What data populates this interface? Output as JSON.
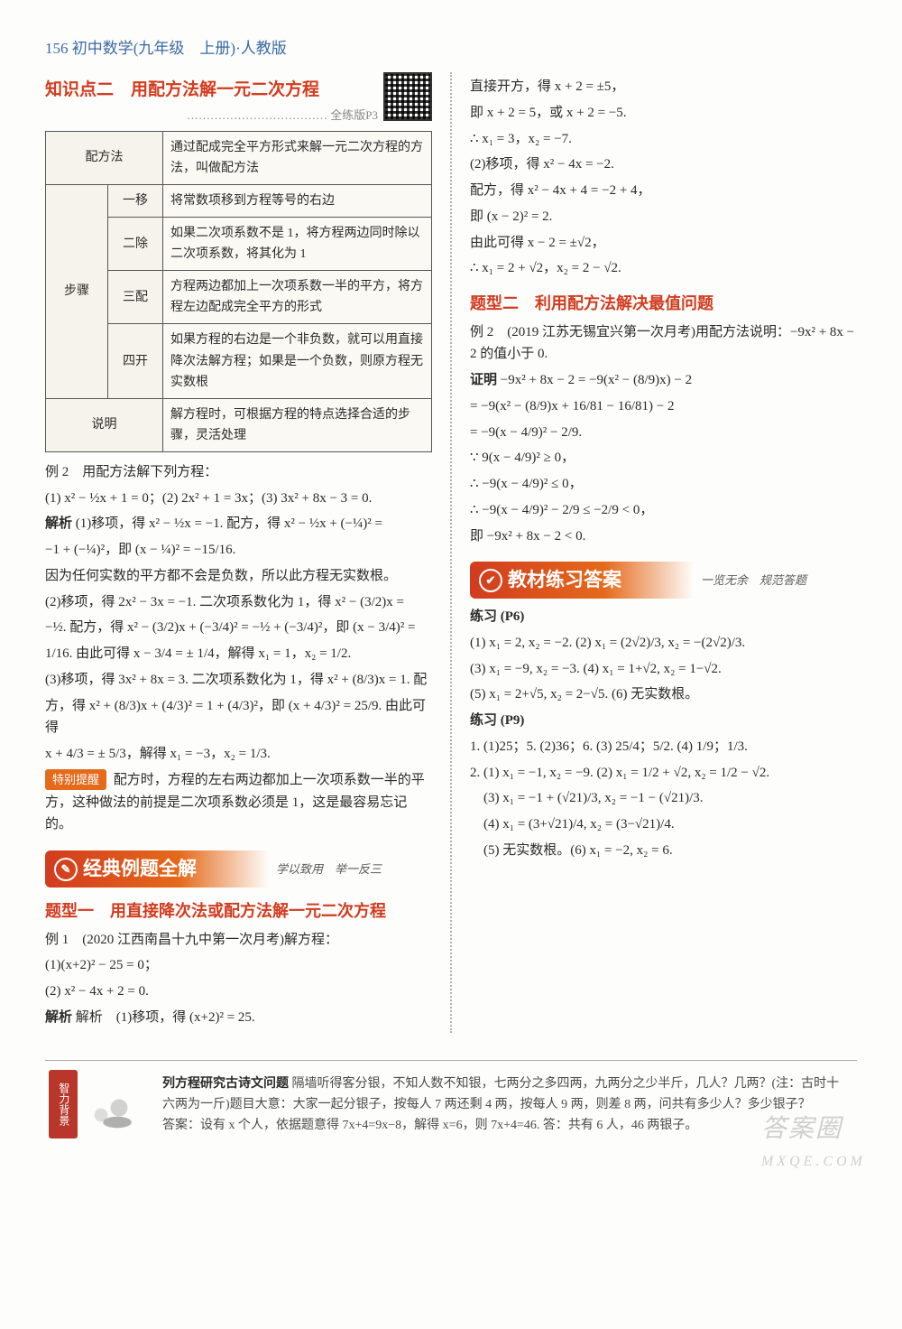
{
  "header": "156 初中数学(九年级　上册)·人教版",
  "left": {
    "kp_title": "知识点二　用配方法解一元二次方程",
    "dotline": "……………………………… 全练版P3",
    "table": {
      "r1l": "配方法",
      "r1": "通过配成完全平方形式来解一元二次方程的方法，叫做配方法",
      "steps_label": "步骤",
      "s1l": "一移",
      "s1": "将常数项移到方程等号的右边",
      "s2l": "二除",
      "s2": "如果二次项系数不是 1，将方程两边同时除以二次项系数，将其化为 1",
      "s3l": "三配",
      "s3": "方程两边都加上一次项系数一半的平方，将方程左边配成完全平方的形式",
      "s4l": "四开",
      "s4": "如果方程的右边是一个非负数，就可以用直接降次法解方程；如果是一个负数，则原方程无实数根",
      "r3l": "说明",
      "r3": "解方程时，可根据方程的特点选择合适的步骤，灵活处理"
    },
    "ex2_title": "例 2　用配方法解下列方程：",
    "ex2_q": "(1) x² − ½x + 1 = 0；(2) 2x² + 1 = 3x；(3) 3x² + 8x − 3 = 0.",
    "jiexi": "解析",
    "p1": "(1)移项，得 x² − ½x = −1. 配方，得 x² − ½x + (−¼)² =",
    "p2": "−1 + (−¼)²，即 (x − ¼)² = −15/16.",
    "p3": "因为任何实数的平方都不会是负数，所以此方程无实数根。",
    "p4": "(2)移项，得 2x² − 3x = −1. 二次项系数化为 1，得 x² − (3/2)x =",
    "p5": "−½. 配方，得 x² − (3/2)x + (−3/4)² = −½ + (−3/4)²，即 (x − 3/4)² =",
    "p6": "1/16. 由此可得 x − 3/4 = ± 1/4，解得 x₁ = 1，x₂ = 1/2.",
    "p7": "(3)移项，得 3x² + 8x = 3. 二次项系数化为 1，得 x² + (8/3)x = 1. 配",
    "p8": "方，得 x² + (8/3)x + (4/3)² = 1 + (4/3)²，即 (x + 4/3)² = 25/9. 由此可得",
    "p9": "x + 4/3 = ± 5/3，解得 x₁ = −3，x₂ = 1/3.",
    "tip_label": "特别提醒",
    "tip": "配方时，方程的左右两边都加上一次项系数一半的平方，这种做法的前提是二次项系数必须是 1，这是最容易忘记的。",
    "banner1": "经典例题全解",
    "banner1_sub": "学以致用　举一反三",
    "type1": "题型一　用直接降次法或配方法解一元二次方程",
    "ex1l": "例 1　(2020 江西南昌十九中第一次月考)解方程：",
    "ex1a": "(1)(x+2)² − 25 = 0；",
    "ex1b": "(2) x² − 4x + 2 = 0.",
    "ex1s": "解析　(1)移项，得 (x+2)² = 25."
  },
  "right": {
    "r1": "直接开方，得 x + 2 = ±5，",
    "r2": "即 x + 2 = 5，或 x + 2 = −5.",
    "r3": "∴ x₁ = 3，x₂ = −7.",
    "r4": "(2)移项，得 x² − 4x = −2.",
    "r5": "配方，得 x² − 4x + 4 = −2 + 4，",
    "r6": "即 (x − 2)² = 2.",
    "r7": "由此可得 x − 2 = ±√2，",
    "r8": "∴ x₁ = 2 + √2，x₂ = 2 − √2.",
    "type2": "题型二　利用配方法解决最值问题",
    "ex2l": "例 2　(2019 江苏无锡宜兴第一次月考)用配方法说明：−9x² + 8x − 2 的值小于 0.",
    "proof": "证明",
    "pr1": "−9x² + 8x − 2 = −9(x² − (8/9)x) − 2",
    "pr2": "= −9(x² − (8/9)x + 16/81 − 16/81) − 2",
    "pr3": "= −9(x − 4/9)² − 2/9.",
    "pr4": "∵ 9(x − 4/9)² ≥ 0，",
    "pr5": "∴ −9(x − 4/9)² ≤ 0，",
    "pr6": "∴ −9(x − 4/9)² − 2/9 ≤ −2/9 < 0，",
    "pr7": "即 −9x² + 8x − 2 < 0.",
    "banner2": "教材练习答案",
    "banner2_sub": "一览无余　规范答题",
    "lx6": "练习 (P6)",
    "a1": "(1) x₁ = 2, x₂ = −2. (2) x₁ = (2√2)/3, x₂ = −(2√2)/3.",
    "a2": "(3) x₁ = −9, x₂ = −3. (4) x₁ = 1+√2, x₂ = 1−√2.",
    "a3": "(5) x₁ = 2+√5, x₂ = 2−√5. (6) 无实数根。",
    "lx9": "练习 (P9)",
    "b1": "1. (1)25；5. (2)36；6. (3) 25/4；5/2. (4) 1/9；1/3.",
    "b2": "2. (1) x₁ = −1, x₂ = −9. (2) x₁ = 1/2 + √2, x₂ = 1/2 − √2.",
    "b3": "　(3) x₁ = −1 + (√21)/3, x₂ = −1 − (√21)/3.",
    "b4": "　(4) x₁ = (3+√21)/4, x₂ = (3−√21)/4.",
    "b5": "　(5) 无实数根。(6) x₁ = −2, x₂ = 6."
  },
  "foot": {
    "seal": "智力背景",
    "title": "列方程研究古诗文问题",
    "body": "隔墙听得客分银，不知人数不知银，七两分之多四两，九两分之少半斤，几人？几两？(注：古时十六两为一斤)题目大意：大家一起分银子，按每人 7 两还剩 4 两，按每人 9 两，则差 8 两，问共有多少人？多少银子？",
    "ans": "答案：设有 x 个人，依据题意得 7x+4=9x−8，解得 x=6，则 7x+4=46. 答：共有 6 人，46 两银子。"
  },
  "watermark_main": "答案圈",
  "watermark_sub": "MXQE.COM"
}
